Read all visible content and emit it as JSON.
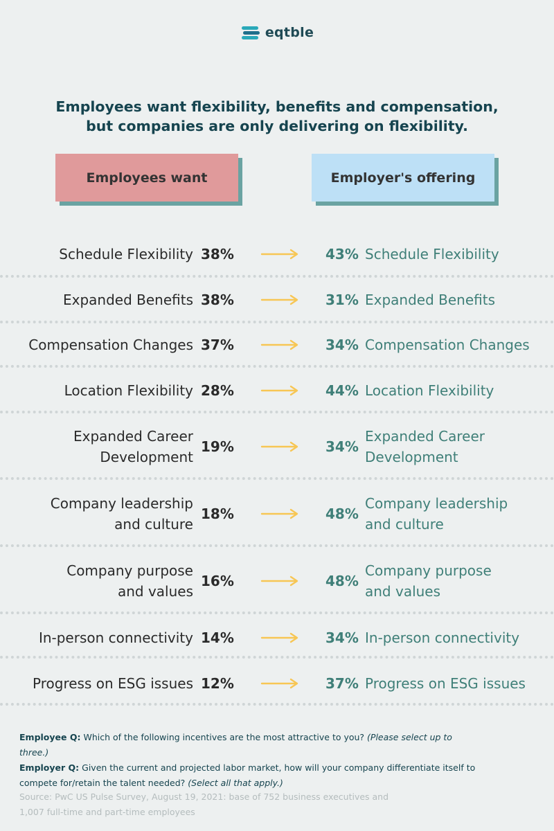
{
  "logo": {
    "text": "eqtble"
  },
  "headline": {
    "line1": "Employees want flexibility, benefits and compensation,",
    "line2": "but companies are only delivering on flexibility."
  },
  "headers": {
    "want": "Employees want",
    "offer": "Employer's offering"
  },
  "colors": {
    "want_header": "#e09a9b",
    "offer_header": "#bde0f6",
    "shadow": "#6aa3a2",
    "arrow": "#f7c654",
    "offer_text": "#3f7f78"
  },
  "rows": [
    {
      "want_label": [
        "Schedule Flexibility"
      ],
      "want_pct": "38%",
      "offer_pct": "43%",
      "offer_label": [
        "Schedule Flexibility"
      ]
    },
    {
      "want_label": [
        "Expanded Benefits"
      ],
      "want_pct": "38%",
      "offer_pct": "31%",
      "offer_label": [
        "Expanded Benefits"
      ]
    },
    {
      "want_label": [
        "Compensation Changes"
      ],
      "want_pct": "37%",
      "offer_pct": "34%",
      "offer_label": [
        "Compensation Changes"
      ]
    },
    {
      "want_label": [
        "Location Flexibility"
      ],
      "want_pct": "28%",
      "offer_pct": "44%",
      "offer_label": [
        "Location Flexibility"
      ]
    },
    {
      "want_label": [
        "Expanded Career",
        "Development"
      ],
      "want_pct": "19%",
      "offer_pct": "34%",
      "offer_label": [
        "Expanded Career",
        "Development"
      ]
    },
    {
      "want_label": [
        "Company leadership",
        "and culture"
      ],
      "want_pct": "18%",
      "offer_pct": "48%",
      "offer_label": [
        "Company leadership",
        "and culture"
      ]
    },
    {
      "want_label": [
        "Company purpose",
        "and values"
      ],
      "want_pct": "16%",
      "offer_pct": "48%",
      "offer_label": [
        "Company purpose",
        "and values"
      ]
    },
    {
      "want_label": [
        "In-person connectivity"
      ],
      "want_pct": "14%",
      "offer_pct": "34%",
      "offer_label": [
        "In-person connectivity"
      ]
    },
    {
      "want_label": [
        "Progress on ESG issues"
      ],
      "want_pct": "12%",
      "offer_pct": "37%",
      "offer_label": [
        "Progress on ESG issues"
      ]
    }
  ],
  "notes": {
    "employee_q_label": "Employee Q:",
    "employee_q_text": "Which of the following incentives are the most attractive to you?",
    "employee_q_hint": "(Please select up to three.)",
    "employer_q_label": "Employer Q:",
    "employer_q_text": "Given the current and projected labor market, how will your company differentiate itself to compete for/retain the talent needed?",
    "employer_q_hint": "(Select all that apply.)"
  },
  "source": {
    "line1": "Source: PwC US Pulse Survey, August 19, 2021: base of 752 business executives and",
    "line2": "1,007 full-time and part-time employees"
  }
}
